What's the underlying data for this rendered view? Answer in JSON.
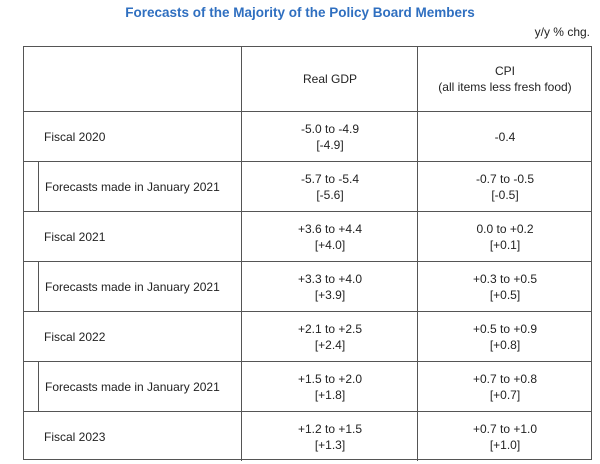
{
  "title": "Forecasts of the Majority of the Policy Board Members",
  "unit": "y/y % chg.",
  "columns": {
    "gdp": "Real GDP",
    "cpi": "CPI",
    "cpi_note": "(all items less fresh food)"
  },
  "rows": [
    {
      "label": "Fiscal 2020",
      "gdp": "-5.0 to -4.9",
      "gdp_med": "[-4.9]",
      "cpi": "-0.4",
      "cpi_med": ""
    },
    {
      "label": "Forecasts made in January 2021",
      "gdp": "-5.7 to -5.4",
      "gdp_med": "[-5.6]",
      "cpi": "-0.7 to -0.5",
      "cpi_med": "[-0.5]"
    },
    {
      "label": "Fiscal 2021",
      "gdp": "+3.6 to +4.4",
      "gdp_med": "[+4.0]",
      "cpi": "0.0 to +0.2",
      "cpi_med": "[+0.1]"
    },
    {
      "label": "Forecasts made in January 2021",
      "gdp": "+3.3 to +4.0",
      "gdp_med": "[+3.9]",
      "cpi": "+0.3 to +0.5",
      "cpi_med": "[+0.5]"
    },
    {
      "label": "Fiscal 2022",
      "gdp": "+2.1 to +2.5",
      "gdp_med": "[+2.4]",
      "cpi": "+0.5 to +0.9",
      "cpi_med": "[+0.8]"
    },
    {
      "label": "Forecasts made in January 2021",
      "gdp": "+1.5 to +2.0",
      "gdp_med": "[+1.8]",
      "cpi": "+0.7 to +0.8",
      "cpi_med": "[+0.7]"
    },
    {
      "label": "Fiscal 2023",
      "gdp": "+1.2 to +1.5",
      "gdp_med": "[+1.3]",
      "cpi": "+0.7 to +1.0",
      "cpi_med": "[+1.0]"
    }
  ]
}
